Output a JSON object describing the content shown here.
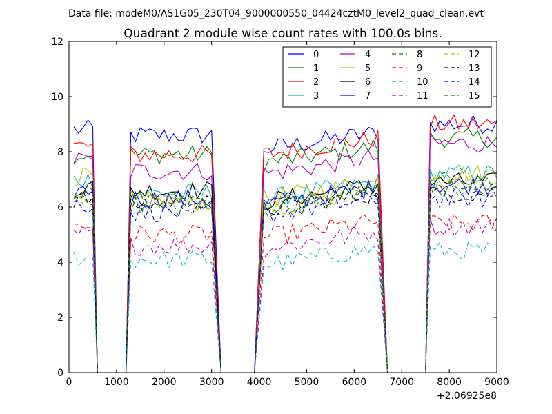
{
  "header": {
    "data_file": "Data file: modeM0/AS1G05_230T04_9000000550_04424cztM0_level2_quad_clean.evt"
  },
  "chart_data": {
    "type": "line",
    "title": "Quadrant 2 module wise count rates with 100.0s bins.",
    "xlabel": "",
    "ylabel": "",
    "x_offset_label": "+2.06925e8",
    "xlim": [
      0,
      9000
    ],
    "ylim": [
      0,
      12
    ],
    "xticks": [
      0,
      1000,
      2000,
      3000,
      4000,
      5000,
      6000,
      7000,
      8000,
      9000
    ],
    "yticks": [
      0,
      2,
      4,
      6,
      8,
      10,
      12
    ],
    "grid": false,
    "legend_placement": "top-right",
    "legend_columns": 4,
    "segments": [
      {
        "start": 100,
        "end": 500,
        "drop_end": 600
      },
      {
        "start": 1300,
        "end": 3000,
        "rise_start": 1200,
        "drop_end": 3200
      },
      {
        "start": 4100,
        "end": 6500,
        "rise_start": 3900,
        "drop_end": 6700
      },
      {
        "start": 7600,
        "end": 9000,
        "rise_start": 7500
      }
    ],
    "series": [
      {
        "name": "0",
        "color": "#0000ff",
        "dash": false,
        "levels": [
          8.8,
          8.6,
          8.4,
          9.0
        ]
      },
      {
        "name": "1",
        "color": "#008000",
        "dash": false,
        "levels": [
          7.9,
          7.9,
          7.9,
          8.5
        ]
      },
      {
        "name": "2",
        "color": "#ff0000",
        "dash": false,
        "levels": [
          8.2,
          7.9,
          8.2,
          9.0
        ]
      },
      {
        "name": "3",
        "color": "#00bfbf",
        "dash": false,
        "levels": [
          7.0,
          6.5,
          6.6,
          7.2
        ]
      },
      {
        "name": "4",
        "color": "#bf00bf",
        "dash": false,
        "levels": [
          7.7,
          7.3,
          7.5,
          8.3
        ]
      },
      {
        "name": "5",
        "color": "#bfbf00",
        "dash": false,
        "levels": [
          7.1,
          6.2,
          6.6,
          7.2
        ]
      },
      {
        "name": "6",
        "color": "#000000",
        "dash": false,
        "levels": [
          6.7,
          6.6,
          6.5,
          6.9
        ]
      },
      {
        "name": "7",
        "color": "#0000ff",
        "dash": false,
        "levels": [
          6.6,
          6.3,
          6.4,
          6.8
        ]
      },
      {
        "name": "8",
        "color": "#008000",
        "dash": true,
        "levels": [
          6.5,
          6.3,
          6.3,
          6.9
        ]
      },
      {
        "name": "9",
        "color": "#ff0000",
        "dash": true,
        "levels": [
          5.3,
          5.0,
          5.2,
          5.4
        ]
      },
      {
        "name": "10",
        "color": "#00bfbf",
        "dash": true,
        "levels": [
          4.2,
          4.1,
          4.2,
          4.4
        ]
      },
      {
        "name": "11",
        "color": "#bf00bf",
        "dash": true,
        "levels": [
          5.0,
          4.6,
          4.8,
          5.3
        ]
      },
      {
        "name": "12",
        "color": "#bfbf00",
        "dash": true,
        "levels": [
          6.4,
          6.2,
          6.3,
          6.9
        ]
      },
      {
        "name": "13",
        "color": "#000000",
        "dash": true,
        "levels": [
          6.3,
          6.1,
          6.2,
          6.5
        ]
      },
      {
        "name": "14",
        "color": "#0000ff",
        "dash": true,
        "levels": [
          6.1,
          5.8,
          6.0,
          6.3
        ]
      },
      {
        "name": "15",
        "color": "#008000",
        "dash": true,
        "levels": [
          6.4,
          6.0,
          6.2,
          6.6
        ]
      }
    ]
  }
}
